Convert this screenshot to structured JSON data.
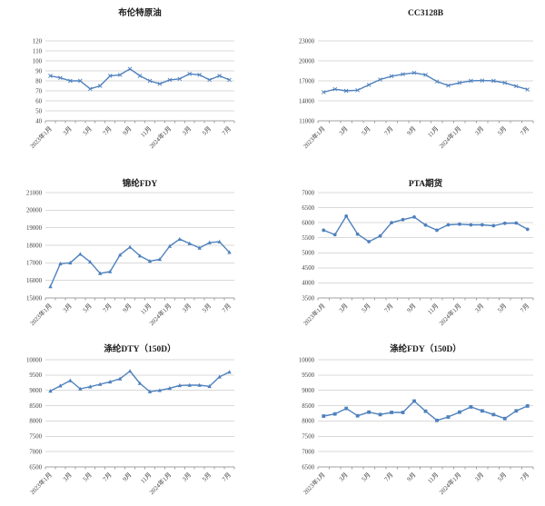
{
  "colors": {
    "series_line": "#4F81BD",
    "gridline": "#D9D9D9",
    "axis_line": "#A0A0A0",
    "axis_label": "#404040",
    "title_text": "#1a1a1a",
    "background": "#FFFFFF"
  },
  "chart_data": [
    {
      "type": "line",
      "title": "布伦特原油",
      "marker": "x",
      "ylim": [
        40,
        120
      ],
      "ystep": 10,
      "grid": true,
      "legend": "none",
      "x_tick_labels": [
        "2023年1月",
        "3月",
        "5月",
        "7月",
        "9月",
        "11月",
        "2024年1月",
        "3月",
        "5月",
        "7月"
      ],
      "values": [
        85,
        83,
        80,
        80,
        72,
        75,
        85,
        86,
        92,
        85,
        80,
        77,
        81,
        82,
        87,
        86,
        81,
        85,
        81
      ]
    },
    {
      "type": "line",
      "title": "CC3128B",
      "marker": "x",
      "ylim": [
        11000,
        23000
      ],
      "ystep": 3000,
      "grid": true,
      "legend": "none",
      "x_tick_labels": [
        "2023年1月",
        "3月",
        "5月",
        "7月",
        "9月",
        "11月",
        "2024年1月",
        "3月",
        "5月",
        "7月"
      ],
      "values": [
        15300,
        15750,
        15500,
        15600,
        16400,
        17200,
        17700,
        18000,
        18200,
        17900,
        16900,
        16300,
        16700,
        17000,
        17050,
        17000,
        16700,
        16200,
        15700
      ]
    },
    {
      "type": "line",
      "title": "锦纶FDY",
      "marker": "triangle",
      "ylim": [
        15000,
        21000
      ],
      "ystep": 1000,
      "grid": true,
      "legend": "none",
      "x_tick_labels": [
        "2023年1月",
        "3月",
        "5月",
        "7月",
        "9月",
        "11月",
        "2024年1月",
        "3月",
        "5月",
        "7月"
      ],
      "values": [
        15650,
        16950,
        17000,
        17500,
        17050,
        16400,
        16500,
        17450,
        17900,
        17400,
        17100,
        17200,
        17950,
        18350,
        18100,
        17850,
        18150,
        18200,
        17600
      ]
    },
    {
      "type": "line",
      "title": "PTA期货",
      "marker": "circle",
      "ylim": [
        3500,
        7000
      ],
      "ystep": 500,
      "grid": true,
      "legend": "none",
      "x_tick_labels": [
        "2023年1月",
        "3月",
        "5月",
        "7月",
        "9月",
        "11月",
        "2024年1月",
        "3月",
        "5月",
        "7月"
      ],
      "values": [
        5750,
        5600,
        6220,
        5620,
        5370,
        5560,
        6000,
        6100,
        6190,
        5920,
        5750,
        5930,
        5950,
        5930,
        5930,
        5900,
        5980,
        5990,
        5780
      ]
    },
    {
      "type": "line",
      "title": "涤纶DTY（150D）",
      "marker": "triangle",
      "ylim": [
        6500,
        10000
      ],
      "ystep": 500,
      "grid": true,
      "legend": "none",
      "x_tick_labels": [
        "2023年1月",
        "3月",
        "5月",
        "7月",
        "9月",
        "11月",
        "2024年1月",
        "3月",
        "5月",
        "7月"
      ],
      "values": [
        8980,
        9150,
        9320,
        9050,
        9120,
        9200,
        9280,
        9380,
        9630,
        9230,
        8960,
        9000,
        9070,
        9160,
        9170,
        9170,
        9130,
        9440,
        9600
      ]
    },
    {
      "type": "line",
      "title": "涤纶FDY（150D）",
      "marker": "square",
      "ylim": [
        6500,
        10000
      ],
      "ystep": 500,
      "grid": true,
      "legend": "none",
      "x_tick_labels": [
        "2023年1月",
        "3月",
        "5月",
        "7月",
        "9月",
        "11月",
        "2024年1月",
        "3月",
        "5月",
        "7月"
      ],
      "values": [
        8160,
        8230,
        8410,
        8170,
        8290,
        8210,
        8280,
        8280,
        8650,
        8320,
        8020,
        8130,
        8290,
        8460,
        8330,
        8210,
        8080,
        8330,
        8490
      ]
    }
  ]
}
